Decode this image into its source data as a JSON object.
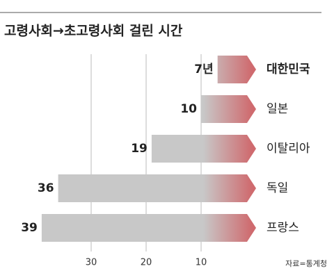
{
  "chart_data": {
    "type": "bar",
    "orientation": "horizontal",
    "title": "고령사회→초고령사회 걸린 시간",
    "categories": [
      "대한민국",
      "일본",
      "이탈리아",
      "독일",
      "프랑스"
    ],
    "values": [
      7,
      10,
      19,
      36,
      39
    ],
    "value_labels": [
      "7년",
      "10",
      "19",
      "36",
      "39"
    ],
    "color": "#c8c8c8",
    "accent_color": "#cf6a6e",
    "xlim": [
      0,
      40
    ],
    "xticks": [
      10,
      20,
      30
    ],
    "x_reversed": true,
    "grid": true,
    "source": "자료=통계청"
  }
}
